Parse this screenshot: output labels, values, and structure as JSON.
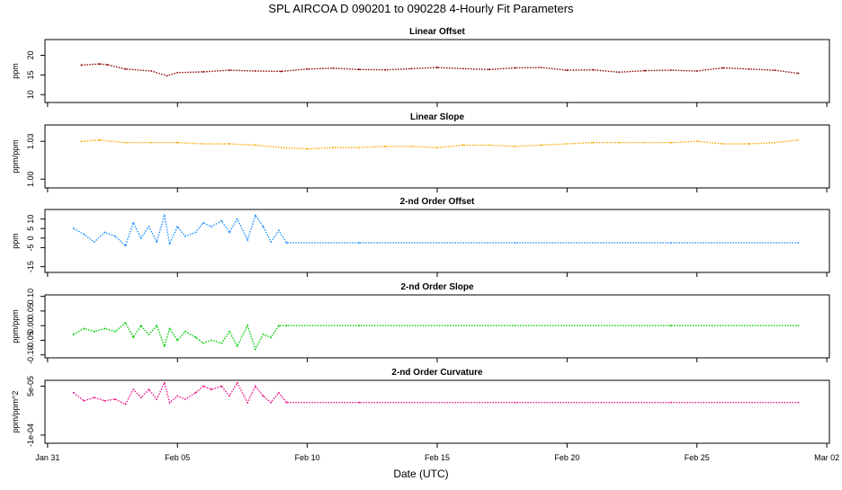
{
  "title": "SPL   AIRCOA D   090201 to 090228   4-Hourly Fit Parameters",
  "xlabel": "Date (UTC)",
  "x_ticks": [
    "Jan 31",
    "Feb 05",
    "Feb 10",
    "Feb 15",
    "Feb 20",
    "Feb 25",
    "Mar 02"
  ],
  "x_tick_days": [
    0,
    5,
    10,
    15,
    20,
    25,
    30
  ],
  "x_range_days": [
    -0.1,
    30.1
  ],
  "chart_data": [
    {
      "type": "line",
      "title": "Linear Offset",
      "ylabel": "ppm",
      "ylim": [
        8,
        24
      ],
      "yticks": [
        10,
        15,
        20
      ],
      "ytick_labels": [
        "10",
        "15",
        "20"
      ],
      "color": "#8b0000",
      "x": [
        1.3,
        2.0,
        2.3,
        3.0,
        4.0,
        4.6,
        5.0,
        6.0,
        7.0,
        8.0,
        9.0,
        10.0,
        11.0,
        12.0,
        13.0,
        14.0,
        15.0,
        16.0,
        17.0,
        18.0,
        19.0,
        20.0,
        21.0,
        22.0,
        23.0,
        24.0,
        25.0,
        26.0,
        27.0,
        28.0,
        28.9
      ],
      "y": [
        17.5,
        17.8,
        17.6,
        16.5,
        16.0,
        14.8,
        15.6,
        15.8,
        16.2,
        16.0,
        15.9,
        16.5,
        16.7,
        16.4,
        16.3,
        16.6,
        16.9,
        16.6,
        16.4,
        16.8,
        16.9,
        16.2,
        16.3,
        15.7,
        16.1,
        16.2,
        16.0,
        16.8,
        16.5,
        16.2,
        15.4
      ]
    },
    {
      "type": "line",
      "title": "Linear Slope",
      "ylabel": "ppm/ppm",
      "ylim": [
        0.993,
        1.043
      ],
      "yticks": [
        1.0,
        1.03
      ],
      "ytick_labels": [
        "1.00",
        "1.03"
      ],
      "color": "#ffa500",
      "x": [
        1.3,
        2.0,
        3.0,
        4.0,
        5.0,
        6.0,
        7.0,
        8.0,
        9.0,
        10.0,
        11.0,
        12.0,
        13.0,
        14.0,
        15.0,
        16.0,
        17.0,
        18.0,
        19.0,
        20.0,
        21.0,
        22.0,
        23.0,
        24.0,
        25.0,
        26.0,
        27.0,
        28.0,
        28.9
      ],
      "y": [
        1.03,
        1.031,
        1.029,
        1.029,
        1.029,
        1.028,
        1.028,
        1.027,
        1.025,
        1.024,
        1.025,
        1.025,
        1.026,
        1.026,
        1.025,
        1.027,
        1.027,
        1.026,
        1.027,
        1.028,
        1.029,
        1.029,
        1.029,
        1.029,
        1.03,
        1.028,
        1.028,
        1.029,
        1.031
      ]
    },
    {
      "type": "line",
      "title": "2-nd Order Offset",
      "ylabel": "ppm",
      "ylim": [
        -18,
        15
      ],
      "yticks": [
        -15,
        -5,
        0,
        5,
        10
      ],
      "ytick_labels": [
        "-15",
        "-5",
        "0",
        "5",
        "10"
      ],
      "color": "#1e90ff",
      "x": [
        1.0,
        1.4,
        1.8,
        2.2,
        2.6,
        3.0,
        3.3,
        3.6,
        3.9,
        4.2,
        4.5,
        4.7,
        5.0,
        5.3,
        5.7,
        6.0,
        6.3,
        6.7,
        7.0,
        7.3,
        7.7,
        8.0,
        8.3,
        8.6,
        8.9,
        9.2,
        12.0,
        18.0,
        24.0,
        28.9
      ],
      "y": [
        5.0,
        2.0,
        -2.0,
        3.0,
        1.0,
        -4.0,
        8.0,
        0.0,
        6.0,
        -2.0,
        12.0,
        -3.0,
        6.0,
        1.0,
        3.0,
        8.0,
        6.0,
        9.0,
        3.0,
        10.0,
        -1.0,
        12.0,
        6.0,
        -2.0,
        4.0,
        -2.5,
        -2.5,
        -2.5,
        -2.5,
        -2.5
      ]
    },
    {
      "type": "line",
      "title": "2-nd Order Slope",
      "ylabel": "ppm/ppm",
      "ylim": [
        -0.11,
        0.105
      ],
      "yticks": [
        -0.1,
        -0.05,
        0.0,
        0.05,
        0.1
      ],
      "ytick_labels": [
        "-0.10",
        "-0.05",
        "0.00",
        "0.05",
        "0.10"
      ],
      "color": "#00cd00",
      "x": [
        1.0,
        1.4,
        1.8,
        2.2,
        2.6,
        3.0,
        3.3,
        3.6,
        3.9,
        4.2,
        4.5,
        4.7,
        5.0,
        5.3,
        5.7,
        6.0,
        6.3,
        6.7,
        7.0,
        7.3,
        7.7,
        8.0,
        8.3,
        8.6,
        8.9,
        9.2,
        12.0,
        18.0,
        24.0,
        28.9
      ],
      "y": [
        -0.03,
        -0.01,
        -0.02,
        -0.01,
        -0.02,
        0.01,
        -0.04,
        0.0,
        -0.03,
        0.0,
        -0.07,
        -0.01,
        -0.05,
        -0.02,
        -0.04,
        -0.06,
        -0.05,
        -0.06,
        -0.02,
        -0.07,
        0.0,
        -0.08,
        -0.03,
        -0.04,
        0.0,
        0.0,
        0.0,
        0.0,
        0.0,
        0.0
      ]
    },
    {
      "type": "line",
      "title": "2-nd Order Curvature",
      "ylabel": "ppm/ppm^2",
      "ylim": [
        -0.000125,
        6.8e-05
      ],
      "yticks": [
        -0.0001,
        5e-05
      ],
      "ytick_labels": [
        "-1e-04",
        "5e-05"
      ],
      "color": "#ee1289",
      "x": [
        1.0,
        1.4,
        1.8,
        2.2,
        2.6,
        3.0,
        3.3,
        3.6,
        3.9,
        4.2,
        4.5,
        4.7,
        5.0,
        5.3,
        5.7,
        6.0,
        6.3,
        6.7,
        7.0,
        7.3,
        7.7,
        8.0,
        8.3,
        8.6,
        8.9,
        9.2,
        12.0,
        18.0,
        24.0,
        28.9
      ],
      "y": [
        3e-05,
        5e-06,
        1.5e-05,
        5e-06,
        1e-05,
        -5e-06,
        4e-05,
        1.5e-05,
        4e-05,
        1e-05,
        6e-05,
        0.0,
        2e-05,
        1e-05,
        3e-05,
        5e-05,
        4e-05,
        5e-05,
        2e-05,
        6e-05,
        0.0,
        5e-05,
        2e-05,
        0.0,
        3e-05,
        0.0,
        0.0,
        0.0,
        0.0,
        0.0
      ]
    }
  ]
}
